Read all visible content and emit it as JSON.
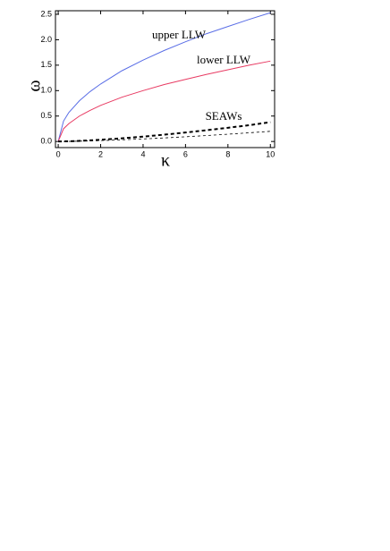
{
  "chart_data": {
    "type": "line",
    "x_label": "κ",
    "y_label": "ω",
    "annotations": [
      "upper LLW",
      "lower LLW",
      "SEAWs"
    ],
    "x": [
      0,
      0.25,
      0.5,
      1,
      1.5,
      2,
      3,
      4,
      5,
      6,
      7,
      8,
      9,
      10
    ],
    "series": [
      {
        "color": "#5a6ee6",
        "dashed": false,
        "width": 1,
        "values": [
          0,
          0.4,
          0.57,
          0.8,
          0.98,
          1.13,
          1.39,
          1.6,
          1.79,
          1.96,
          2.12,
          2.26,
          2.4,
          2.53
        ]
      },
      {
        "color": "#e83a62",
        "dashed": false,
        "width": 1,
        "values": [
          0,
          0.25,
          0.35,
          0.5,
          0.61,
          0.71,
          0.87,
          1.0,
          1.12,
          1.22,
          1.32,
          1.41,
          1.5,
          1.58
        ]
      },
      {
        "color": "#000000",
        "dashed": true,
        "width": 2,
        "values": [
          0,
          0.002,
          0.004,
          0.012,
          0.022,
          0.034,
          0.062,
          0.096,
          0.134,
          0.176,
          0.222,
          0.27,
          0.32,
          0.38
        ]
      },
      {
        "color": "#000000",
        "dashed": true,
        "width": 0.8,
        "values": [
          0,
          0.001,
          0.002,
          0.006,
          0.012,
          0.018,
          0.033,
          0.05,
          0.07,
          0.093,
          0.117,
          0.143,
          0.171,
          0.2
        ]
      }
    ],
    "xlim": [
      -0.13,
      10.2
    ],
    "ylim": [
      -0.12,
      2.57
    ],
    "xticks": [
      0,
      2,
      4,
      6,
      8,
      10
    ],
    "yticks": [
      {
        "value": 0,
        "label": "0.0"
      },
      0.5,
      {
        "value": 1,
        "label": "1.0"
      },
      1.5,
      {
        "value": 2,
        "label": "2.0"
      },
      2.5
    ]
  }
}
